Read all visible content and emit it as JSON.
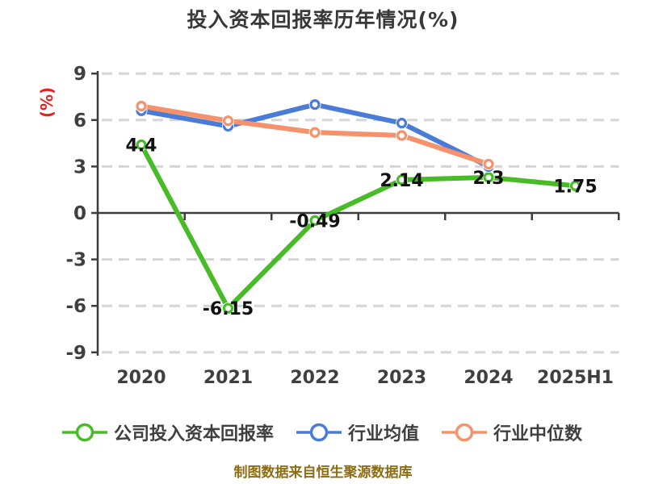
{
  "chart_data": {
    "type": "line",
    "title": "投入资本回报率历年情况(%)",
    "ylabel": "(%)",
    "xlabel": "",
    "categories": [
      "2020",
      "2021",
      "2022",
      "2023",
      "2024",
      "2025H1"
    ],
    "y_ticks": [
      9,
      6,
      3,
      0,
      -3,
      -6,
      -9
    ],
    "ylim": [
      -9,
      9
    ],
    "grid": "horizontal dashed gridlines; solid axis line at 0 with category ticks",
    "legend_position": "bottom",
    "series": [
      {
        "name": "公司投入资本回报率",
        "color": "#47bc27",
        "values": [
          4.4,
          -6.15,
          -0.49,
          2.14,
          2.3,
          1.75
        ],
        "point_labels": [
          "4.4",
          "-6.15",
          "-0.49",
          "2.14",
          "2.3",
          "1.75"
        ]
      },
      {
        "name": "行业均值",
        "color": "#4a7bd9",
        "values": [
          6.6,
          5.6,
          7.0,
          5.8,
          3.0,
          null
        ],
        "point_labels": []
      },
      {
        "name": "行业中位数",
        "color": "#f5916b",
        "values": [
          6.9,
          5.95,
          5.2,
          5.0,
          3.15,
          null
        ],
        "point_labels": []
      }
    ],
    "source_note": "制图数据来自恒生聚源数据库"
  },
  "colors": {
    "background": "#ffffff",
    "title": "#383838",
    "axis": "#3d3d3d",
    "tick_label": "#3f3f3f",
    "gridline": "#d5d5d5",
    "point_label": "#111111",
    "ylabel_unit": "#e62222",
    "source_note": "#8e6d12"
  }
}
